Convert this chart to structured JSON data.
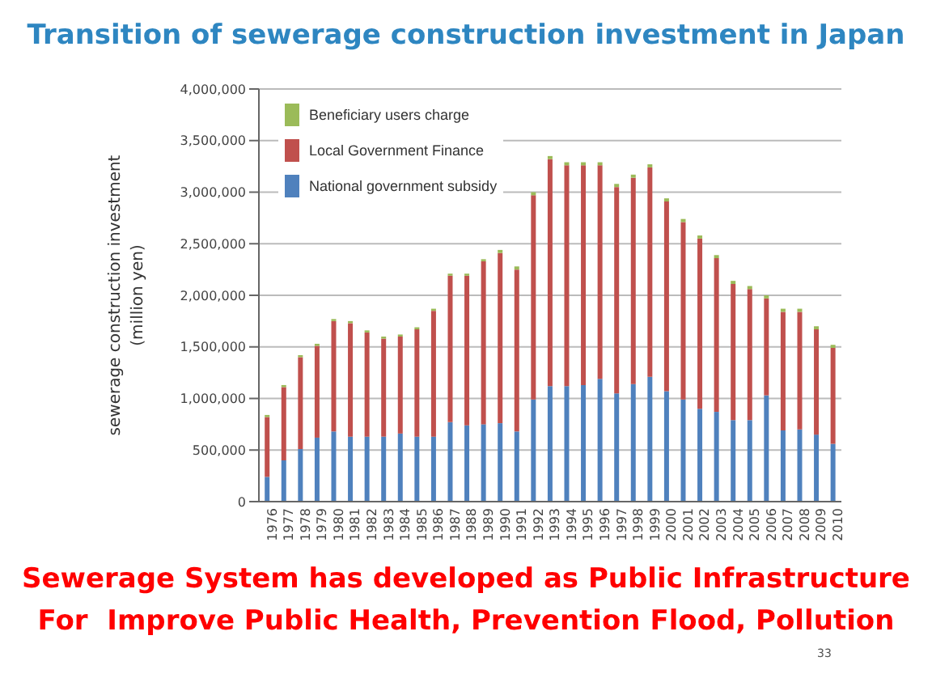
{
  "chart_data": {
    "type": "bar",
    "title": "Transition of sewerage construction investment in Japan",
    "ylabel": "sewerage construction investment\n(million yen)",
    "categories": [
      "1976",
      "1977",
      "1978",
      "1979",
      "1980",
      "1981",
      "1982",
      "1983",
      "1984",
      "1985",
      "1986",
      "1987",
      "1988",
      "1989",
      "1990",
      "1991",
      "1992",
      "1993",
      "1994",
      "1995",
      "1996",
      "1997",
      "1998",
      "1999",
      "2000",
      "2001",
      "2002",
      "2003",
      "2004",
      "2005",
      "2006",
      "2007",
      "2008",
      "2009",
      "2010"
    ],
    "stacked": true,
    "series": [
      {
        "name": "National government subsidy",
        "color": "#4f81bd",
        "values": [
          240000,
          400000,
          510000,
          620000,
          680000,
          630000,
          630000,
          630000,
          660000,
          630000,
          630000,
          770000,
          740000,
          750000,
          760000,
          680000,
          990000,
          1120000,
          1120000,
          1130000,
          1190000,
          1050000,
          1140000,
          1210000,
          1070000,
          990000,
          900000,
          870000,
          790000,
          790000,
          1030000,
          690000,
          700000,
          650000,
          560000
        ]
      },
      {
        "name": "Local Government Finance",
        "color": "#c0504d",
        "values": [
          580000,
          710000,
          890000,
          890000,
          1070000,
          1100000,
          1010000,
          950000,
          940000,
          1040000,
          1220000,
          1420000,
          1450000,
          1580000,
          1650000,
          1570000,
          1980000,
          2200000,
          2140000,
          2130000,
          2070000,
          2000000,
          2000000,
          2030000,
          1840000,
          1720000,
          1650000,
          1490000,
          1320000,
          1270000,
          940000,
          1150000,
          1140000,
          1020000,
          930000
        ]
      },
      {
        "name": "Beneficiary users charge",
        "color": "#9bbb59",
        "values": [
          20000,
          20000,
          20000,
          20000,
          20000,
          20000,
          20000,
          20000,
          20000,
          20000,
          20000,
          20000,
          20000,
          20000,
          30000,
          30000,
          30000,
          30000,
          30000,
          30000,
          30000,
          30000,
          30000,
          30000,
          30000,
          30000,
          30000,
          30000,
          30000,
          30000,
          30000,
          30000,
          30000,
          30000,
          30000
        ]
      }
    ],
    "ylim": [
      0,
      4000000
    ],
    "yticks": [
      0,
      {
        "value": 500000,
        "label": "500,000"
      },
      {
        "value": 1000000,
        "label": "1,000,000"
      },
      {
        "value": 1500000,
        "label": "1,500,000"
      },
      {
        "value": 2000000,
        "label": "2,000,000"
      },
      {
        "value": 2500000,
        "label": "2,500,000"
      },
      {
        "value": 3000000,
        "label": "3,000,000"
      },
      {
        "value": 3500000,
        "label": "3,500,000"
      },
      {
        "value": 4000000,
        "label": "4,000,000"
      }
    ],
    "grid": "y",
    "legend": "top left",
    "annotations": [
      "Sewerage System has developed as Public Infrastructure",
      "For  Improve Public Health, Prevention Flood, Pollution",
      "33"
    ]
  }
}
